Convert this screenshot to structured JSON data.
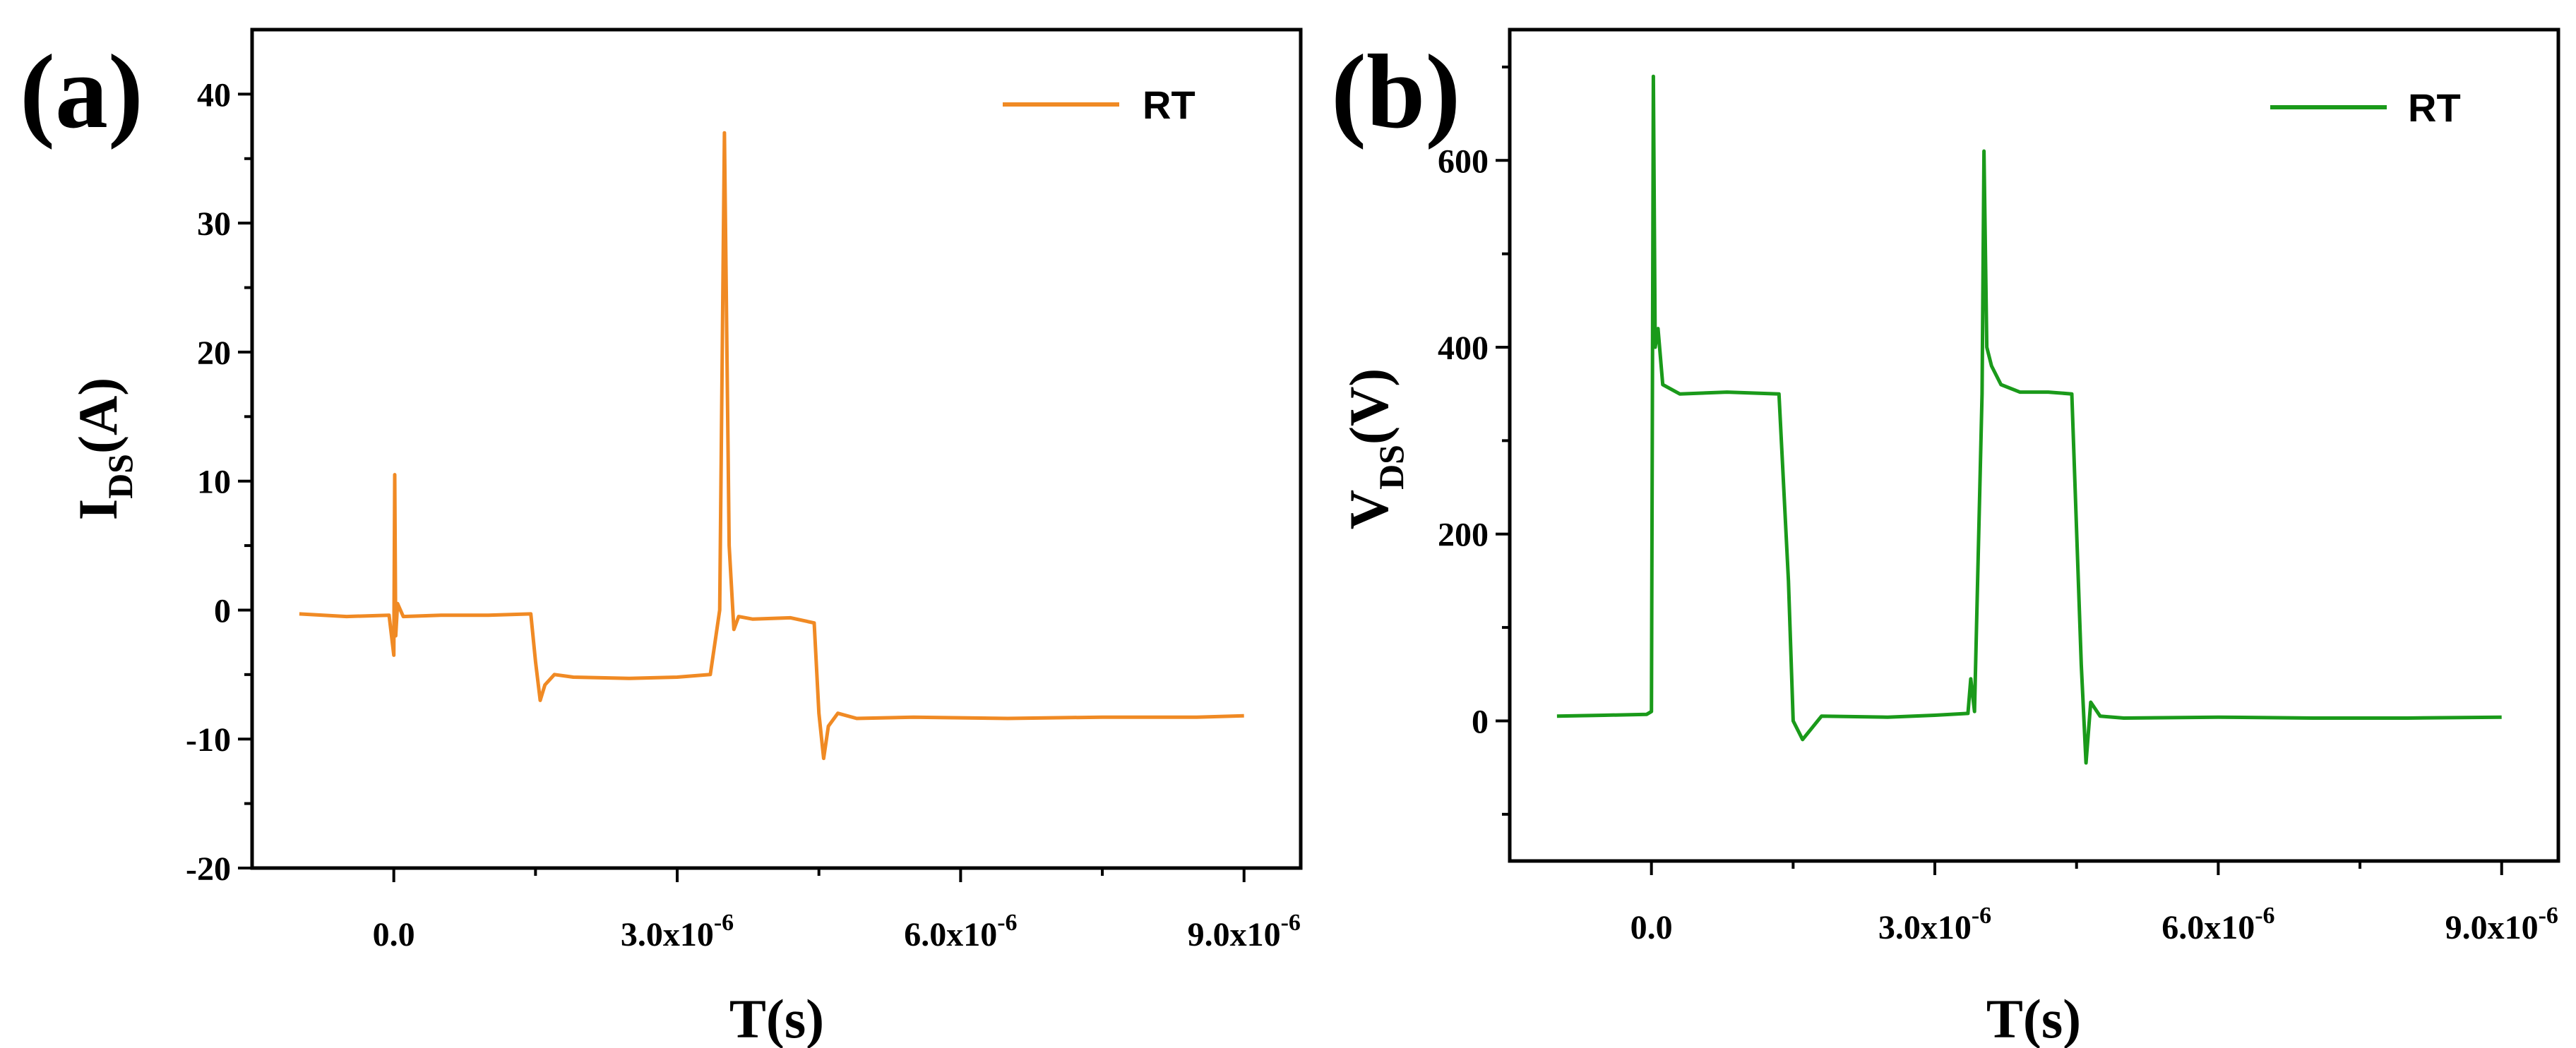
{
  "chart_data": [
    {
      "type": "line",
      "panel_label": "(a)",
      "ylabel": "I",
      "ylabel_sub": "DS",
      "ylabel_unit": "(A)",
      "xlabel": "T(s)",
      "xlim": [
        -1.5e-06,
        9.6e-06
      ],
      "ylim": [
        -20,
        45
      ],
      "xticks": [
        0,
        3e-06,
        6e-06,
        9e-06
      ],
      "xtick_labels": [
        {
          "base": "0.0",
          "exp": ""
        },
        {
          "base": "3.0x10",
          "exp": "-6"
        },
        {
          "base": "6.0x10",
          "exp": "-6"
        },
        {
          "base": "9.0x10",
          "exp": "-6"
        }
      ],
      "yticks": [
        -20,
        -10,
        0,
        10,
        20,
        30,
        40
      ],
      "ytick_labels": [
        "-20",
        "-10",
        "0",
        "10",
        "20",
        "30",
        "40"
      ],
      "legend": {
        "label": "RT",
        "position": "top-right"
      },
      "series": [
        {
          "name": "RT",
          "color": "#F08A24",
          "x": [
            -1e-06,
            -5e-07,
            -5e-08,
            0,
            1e-08,
            2e-08,
            4e-08,
            1e-07,
            5e-07,
            1e-06,
            1.45e-06,
            1.5e-06,
            1.55e-06,
            1.6e-06,
            1.7e-06,
            1.9e-06,
            2.5e-06,
            3e-06,
            3.35e-06,
            3.45e-06,
            3.5e-06,
            3.55e-06,
            3.6e-06,
            3.65e-06,
            3.8e-06,
            4.2e-06,
            4.45e-06,
            4.5e-06,
            4.55e-06,
            4.6e-06,
            4.7e-06,
            4.9e-06,
            5.5e-06,
            6.5e-06,
            7.5e-06,
            8.5e-06,
            9e-06
          ],
          "y": [
            -0.3,
            -0.5,
            -0.4,
            -3.5,
            10.5,
            -2.0,
            0.5,
            -0.5,
            -0.4,
            -0.4,
            -0.3,
            -4.0,
            -7.0,
            -5.8,
            -5.0,
            -5.2,
            -5.3,
            -5.2,
            -5.0,
            0.0,
            37.0,
            5.0,
            -1.5,
            -0.5,
            -0.7,
            -0.6,
            -1.0,
            -8.0,
            -11.5,
            -9.0,
            -8.0,
            -8.4,
            -8.3,
            -8.4,
            -8.3,
            -8.3,
            -8.2
          ]
        }
      ]
    },
    {
      "type": "line",
      "panel_label": "(b)",
      "ylabel": "V",
      "ylabel_sub": "DS",
      "ylabel_unit": "(V)",
      "xlabel": "T(s)",
      "xlim": [
        -1.5e-06,
        9.6e-06
      ],
      "ylim": [
        -150,
        740
      ],
      "xticks": [
        0,
        3e-06,
        6e-06,
        9e-06
      ],
      "xtick_labels": [
        {
          "base": "0.0",
          "exp": ""
        },
        {
          "base": "3.0x10",
          "exp": "-6"
        },
        {
          "base": "6.0x10",
          "exp": "-6"
        },
        {
          "base": "9.0x10",
          "exp": "-6"
        }
      ],
      "yticks": [
        0,
        200,
        400,
        600
      ],
      "ytick_labels": [
        "0",
        "200",
        "400",
        "600"
      ],
      "legend": {
        "label": "RT",
        "position": "top-right"
      },
      "series": [
        {
          "name": "RT",
          "color": "#1A9A1A",
          "x": [
            -1e-06,
            -5e-07,
            -5e-08,
            0,
            2e-08,
            4e-08,
            7e-08,
            1.2e-07,
            3e-07,
            8e-07,
            1.35e-06,
            1.45e-06,
            1.5e-06,
            1.6e-06,
            1.8e-06,
            2.5e-06,
            3e-06,
            3.35e-06,
            3.38e-06,
            3.42e-06,
            3.5e-06,
            3.52e-06,
            3.55e-06,
            3.6e-06,
            3.7e-06,
            3.9e-06,
            4.2e-06,
            4.45e-06,
            4.55e-06,
            4.6e-06,
            4.65e-06,
            4.75e-06,
            5e-06,
            6e-06,
            7e-06,
            8e-06,
            9e-06
          ],
          "y": [
            5,
            6,
            7,
            10,
            690,
            400,
            420,
            360,
            350,
            352,
            350,
            150,
            0,
            -20,
            5,
            4,
            6,
            8,
            45,
            10,
            350,
            610,
            400,
            380,
            360,
            352,
            352,
            350,
            60,
            -45,
            20,
            5,
            3,
            4,
            3,
            3,
            4
          ]
        }
      ]
    }
  ]
}
